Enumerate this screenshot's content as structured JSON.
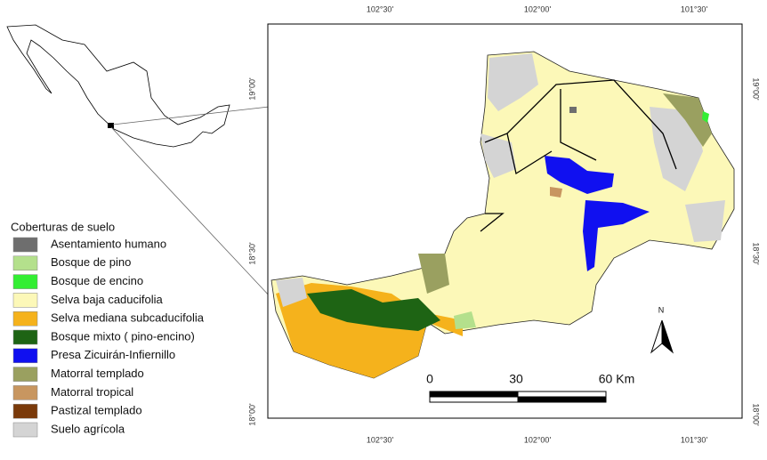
{
  "legend": {
    "title": "Coberturas de suelo",
    "items": [
      {
        "label": "Asentamiento humano",
        "color": "#6e6e6e"
      },
      {
        "label": "Bosque de pino",
        "color": "#b4e08c"
      },
      {
        "label": "Bosque de encino",
        "color": "#33ee33"
      },
      {
        "label": "Selva baja caducifolia",
        "color": "#fcf8b8"
      },
      {
        "label": "Selva mediana subcaducifolia",
        "color": "#f5b21c"
      },
      {
        "label": "Bosque mixto ( pino-encino)",
        "color": "#1e6414"
      },
      {
        "label": "Presa Zicuirán-Infiernillo",
        "color": "#1010f0"
      },
      {
        "label": "Matorral templado",
        "color": "#9aa060"
      },
      {
        "label": "Matorral tropical",
        "color": "#c89660"
      },
      {
        "label": "Pastizal templado",
        "color": "#7a3a0a"
      },
      {
        "label": "Suelo agrícola",
        "color": "#d4d4d4"
      }
    ]
  },
  "graticule": {
    "top": [
      "102°30'",
      "102°00'",
      "101°30'"
    ],
    "bottom": [
      "102°30'",
      "102°00'",
      "101°30'"
    ],
    "left": [
      "19°00'",
      "18°30'",
      "18°00'"
    ],
    "right": [
      "19°00'",
      "18°30'",
      "18°00'"
    ]
  },
  "scale_bar": {
    "labels": [
      "0",
      "30",
      "60 Km"
    ]
  },
  "north_arrow": {
    "label": "N"
  }
}
